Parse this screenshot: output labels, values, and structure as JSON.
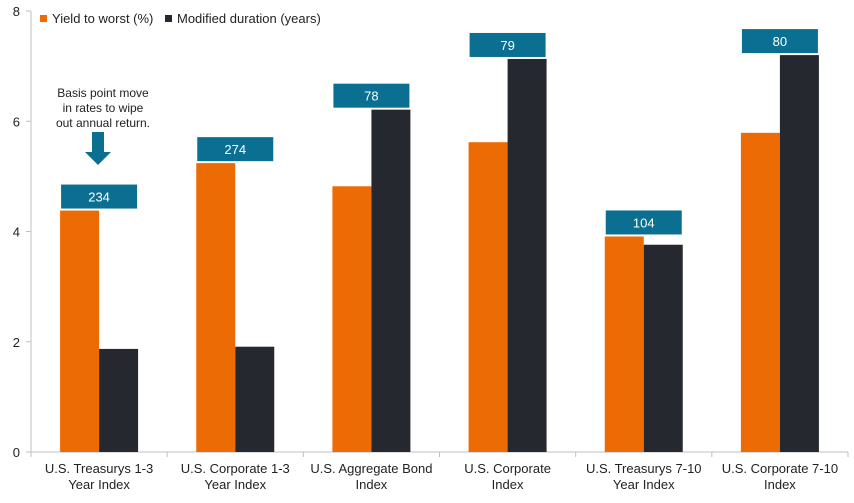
{
  "chart_data": {
    "type": "bar",
    "categories": [
      "U.S. Treasurys 1-3\nYear Index",
      "U.S. Corporate 1-3\nYear Index",
      "U.S. Aggregate Bond\nIndex",
      "U.S.  Corporate\nIndex",
      "U.S. Treasurys 7-10\nYear Index",
      "U.S. Corporate 7-10\nIndex"
    ],
    "series": [
      {
        "name": "Yield to worst (%)",
        "color": "#ed6b05",
        "values": [
          4.38,
          5.24,
          4.82,
          5.62,
          3.91,
          5.79
        ]
      },
      {
        "name": "Modified duration (years)",
        "color": "#25292f",
        "values": [
          1.87,
          1.91,
          6.21,
          7.13,
          3.76,
          7.2
        ]
      }
    ],
    "data_labels": [
      "234",
      "274",
      "78",
      "79",
      "104",
      "80"
    ],
    "data_label_color": "#0b6f91",
    "annotation": "Basis point move\nin rates to wipe\nout annual return.",
    "ylim": [
      0,
      8
    ],
    "yticks": [
      0,
      2,
      4,
      6,
      8
    ],
    "legend_position": "top-left",
    "grid": false
  }
}
